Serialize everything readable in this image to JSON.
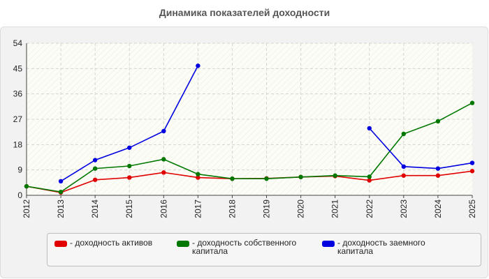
{
  "chart_data": {
    "type": "line",
    "title": "Динамика показателей доходности",
    "x": [
      "2012",
      "2013",
      "2014",
      "2015",
      "2016",
      "2017",
      "2018",
      "2019",
      "2020",
      "2021",
      "2022",
      "2023",
      "2024",
      "2025"
    ],
    "yticks": [
      0,
      9,
      18,
      27,
      36,
      45,
      54
    ],
    "ylim": [
      0,
      54
    ],
    "grid": true,
    "legend_position": "bottom",
    "series": [
      {
        "name": "- доходность активов",
        "color": "#e00000",
        "values": [
          3.2,
          1.0,
          5.5,
          6.3,
          8.1,
          6.3,
          5.9,
          6.0,
          6.5,
          6.8,
          5.3,
          7.0,
          7.0,
          8.6
        ]
      },
      {
        "name": "- доходность собственного капитала",
        "color": "#007800",
        "values": [
          3.2,
          1.2,
          9.5,
          10.4,
          12.8,
          7.5,
          5.9,
          5.9,
          6.5,
          7.0,
          6.6,
          21.8,
          26.3,
          32.8
        ]
      },
      {
        "name": "- доходность заемного капитала",
        "color": "#0000e0",
        "values": [
          null,
          5.0,
          12.5,
          16.9,
          22.8,
          46.0,
          null,
          null,
          null,
          null,
          23.8,
          10.2,
          9.5,
          11.5
        ]
      }
    ]
  }
}
